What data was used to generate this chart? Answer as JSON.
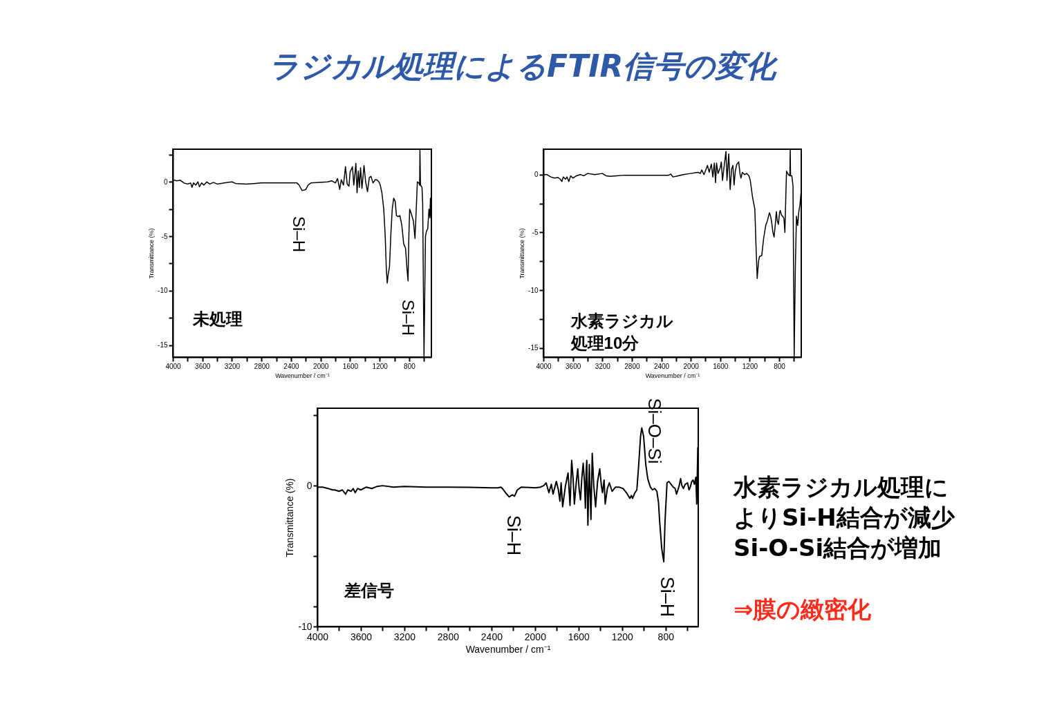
{
  "chart_data": [
    {
      "type": "other",
      "title": "ラジカル処理によるFTIR信号の変化"
    },
    {
      "type": "line",
      "color": "#000000",
      "line_style": "solid",
      "xlabel": "Wavenumber / cm⁻¹",
      "ylabel": "Transmittance (%)",
      "xlim": [
        4000,
        500
      ],
      "ylim": [
        -16.1,
        3.0
      ],
      "xticks": [
        4000,
        {
          "value": 3800,
          "label": null
        },
        3600,
        {
          "value": 3400,
          "label": null
        },
        3200,
        {
          "value": 3000,
          "label": null
        },
        2800,
        {
          "value": 2600,
          "label": null
        },
        2400,
        {
          "value": 2200,
          "label": null
        },
        2000,
        {
          "value": 1800,
          "label": null
        },
        1600,
        {
          "value": 1400,
          "label": null
        },
        1200,
        {
          "value": 1000,
          "label": null
        },
        800,
        {
          "value": 600,
          "label": null
        }
      ],
      "yticks": [
        {
          "value": 2.5,
          "label": null
        },
        0,
        {
          "value": -2.5,
          "label": null
        },
        -5,
        {
          "value": -7.5,
          "label": null
        },
        -10,
        {
          "value": -12.5,
          "label": null
        },
        -15
      ],
      "annotations": [
        "未処理",
        "Si–H",
        "Si–H"
      ],
      "x": [
        4000,
        3950,
        3900,
        3850,
        3800,
        3760,
        3740,
        3720,
        3690,
        3660,
        3640,
        3610,
        3580,
        3540,
        3500,
        3450,
        3400,
        3300,
        3200,
        3150,
        3000,
        2900,
        2800,
        2600,
        2400,
        2320,
        2290,
        2250,
        2220,
        2200,
        2170,
        2130,
        2000,
        1900,
        1850,
        1800,
        1770,
        1741,
        1720,
        1690,
        1663,
        1640,
        1616,
        1600,
        1569,
        1550,
        1522,
        1506,
        1490,
        1475,
        1459,
        1440,
        1412,
        1390,
        1365,
        1340,
        1318,
        1290,
        1260,
        1240,
        1210,
        1192,
        1170,
        1145,
        1125,
        1110,
        1098,
        1085,
        1067,
        1050,
        1030,
        1010,
        990,
        973,
        950,
        926,
        900,
        875,
        850,
        830,
        816,
        805,
        794,
        769,
        744,
        722,
        705,
        690,
        670,
        659,
        655,
        648,
        627,
        618,
        600,
        580,
        565,
        549,
        533,
        520,
        513,
        502
      ],
      "values": [
        0.2,
        0.1,
        0.15,
        -0.1,
        -0.2,
        -0.1,
        -0.5,
        -0.1,
        -0.3,
        0.0,
        -0.45,
        -0.1,
        -0.3,
        0.0,
        -0.2,
        -0.05,
        -0.2,
        -0.1,
        0.0,
        -0.15,
        -0.2,
        -0.15,
        -0.1,
        -0.1,
        -0.1,
        -0.1,
        -0.3,
        -0.8,
        -0.75,
        -0.7,
        -0.3,
        -0.1,
        -0.05,
        0.0,
        0.1,
        -0.1,
        0.3,
        -0.7,
        0.2,
        -0.3,
        1.4,
        -0.2,
        -0.4,
        0.9,
        1.4,
        -0.3,
        1.7,
        -1.0,
        1.0,
        -0.5,
        1.3,
        -0.6,
        1.5,
        0.0,
        -0.9,
        0.4,
        0.5,
        -0.1,
        0.2,
        0.2,
        0.0,
        -0.3,
        -1.0,
        -2.5,
        -5.0,
        -8.0,
        -9.3,
        -8.5,
        -7.8,
        -5.0,
        -2.5,
        -1.5,
        -1.8,
        -3.1,
        -3.2,
        -3.1,
        -4.0,
        -5.7,
        -6.1,
        -8.0,
        -9.1,
        -5.0,
        -2.5,
        -3.0,
        -3.6,
        -5.2,
        -2.5,
        0.0,
        -0.1,
        -0.3,
        3.0,
        -0.3,
        -0.5,
        -2.0,
        -16.1,
        -5.0,
        -4.5,
        -4.3,
        -2.5,
        -3.3,
        -1.5,
        -3.5
      ]
    },
    {
      "type": "line",
      "color": "#000000",
      "line_style": "solid",
      "xlabel": "Wavenumber / cm⁻¹",
      "ylabel": "Transmittance (%)",
      "xlim": [
        4000,
        500
      ],
      "ylim": [
        -15.8,
        2.2
      ],
      "xticks": [
        4000,
        {
          "value": 3800,
          "label": null
        },
        3600,
        {
          "value": 3400,
          "label": null
        },
        3200,
        {
          "value": 3000,
          "label": null
        },
        2800,
        {
          "value": 2600,
          "label": null
        },
        2400,
        {
          "value": 2200,
          "label": null
        },
        2000,
        {
          "value": 1800,
          "label": null
        },
        1600,
        {
          "value": 1400,
          "label": null
        },
        1200,
        {
          "value": 1000,
          "label": null
        },
        800,
        {
          "value": 600,
          "label": null
        }
      ],
      "yticks": [
        0,
        {
          "value": -2.5,
          "label": null
        },
        -5,
        {
          "value": -7.5,
          "label": null
        },
        -10,
        {
          "value": -12.5,
          "label": null
        },
        -15
      ],
      "annotations": [
        "水素ラジカル処理10分"
      ],
      "x": [
        4000,
        3950,
        3900,
        3850,
        3800,
        3770,
        3749,
        3730,
        3700,
        3680,
        3655,
        3630,
        3600,
        3550,
        3500,
        3450,
        3400,
        3300,
        3200,
        3150,
        3100,
        3000,
        2900,
        2800,
        2600,
        2400,
        2300,
        2270,
        2243,
        2200,
        2100,
        2000,
        1950,
        1900,
        1870,
        1850,
        1820,
        1790,
        1773,
        1750,
        1720,
        1700,
        1680,
        1663,
        1650,
        1630,
        1600,
        1585,
        1569,
        1545,
        1522,
        1508,
        1484,
        1465,
        1445,
        1428,
        1412,
        1395,
        1375,
        1349,
        1330,
        1318,
        1300,
        1270,
        1240,
        1210,
        1192,
        1160,
        1130,
        1115,
        1098,
        1080,
        1067,
        1036,
        1010,
        982,
        960,
        932,
        920,
        904,
        885,
        869,
        855,
        838,
        825,
        810,
        795,
        785,
        770,
        753,
        735,
        722,
        710,
        700,
        675,
        655,
        650,
        645,
        628,
        612,
        596,
        580,
        565,
        549,
        533,
        518,
        502,
        500
      ],
      "values": [
        0.0,
        0.0,
        -0.2,
        -0.3,
        -0.25,
        -0.4,
        -0.6,
        -0.2,
        -0.4,
        -0.2,
        -0.6,
        -0.1,
        -0.3,
        -0.1,
        0.0,
        -0.1,
        0.1,
        0.0,
        0.1,
        -0.1,
        -0.15,
        -0.1,
        -0.05,
        -0.05,
        -0.05,
        -0.05,
        -0.05,
        0.05,
        -0.2,
        -0.15,
        0.0,
        0.1,
        0.15,
        0.2,
        0.1,
        0.4,
        0.0,
        0.5,
        0.8,
        0.2,
        0.9,
        -0.2,
        1.0,
        -0.7,
        1.0,
        0.1,
        0.6,
        1.1,
        -0.5,
        0.8,
        2.0,
        -0.5,
        1.8,
        -1.3,
        0.5,
        0.8,
        -0.9,
        0.3,
        0.9,
        1.1,
        0.0,
        -0.3,
        0.2,
        0.0,
        0.1,
        -0.1,
        -0.5,
        -2.0,
        -3.0,
        -6.0,
        -9.0,
        -7.5,
        -7.1,
        -7.0,
        -5.5,
        -4.4,
        -4.0,
        -3.3,
        -3.5,
        -4.0,
        -5.0,
        -5.4,
        -4.5,
        -3.2,
        -4.0,
        -4.3,
        -3.3,
        -3.1,
        -3.5,
        -3.6,
        -3.8,
        -5.0,
        -2.0,
        0.3,
        0.0,
        -0.1,
        2.2,
        -0.1,
        -0.1,
        -1.0,
        -15.8,
        -8.0,
        -3.6,
        -4.4,
        -3.2,
        -2.6,
        -1.5,
        -3.3
      ]
    },
    {
      "type": "line",
      "color": "#000000",
      "line_style": "solid",
      "xlabel": "Wavenumber / cm⁻¹",
      "ylabel": "Transmittance (%)",
      "xlim": [
        4000,
        500
      ],
      "ylim": [
        -10,
        5.5
      ],
      "xticks": [
        4000,
        {
          "value": 3800,
          "label": null
        },
        3600,
        {
          "value": 3400,
          "label": null
        },
        3200,
        {
          "value": 3000,
          "label": null
        },
        2800,
        {
          "value": 2600,
          "label": null
        },
        2400,
        {
          "value": 2200,
          "label": null
        },
        2000,
        {
          "value": 1800,
          "label": null
        },
        1600,
        {
          "value": 1400,
          "label": null
        },
        1200,
        {
          "value": 1000,
          "label": null
        },
        800,
        {
          "value": 600,
          "label": null
        }
      ],
      "yticks": [
        {
          "value": 5,
          "label": null
        },
        0,
        {
          "value": -5,
          "label": null
        },
        {
          "value": -8.6,
          "label": null
        },
        -10
      ],
      "annotations": [
        "差信号",
        "Si–O–Si",
        "Si–H",
        "Si–H"
      ],
      "x": [
        4000,
        3950,
        3900,
        3860,
        3841,
        3800,
        3770,
        3740,
        3720,
        3690,
        3670,
        3652,
        3630,
        3600,
        3550,
        3500,
        3450,
        3400,
        3300,
        3200,
        3000,
        2800,
        2600,
        2400,
        2340,
        2314,
        2300,
        2270,
        2238,
        2208,
        2188,
        2162,
        2125,
        2000,
        1950,
        1920,
        1898,
        1872,
        1850,
        1834,
        1804,
        1785,
        1771,
        1760,
        1746,
        1720,
        1696,
        1678,
        1663,
        1650,
        1638,
        1620,
        1607,
        1595,
        1582,
        1570,
        1557,
        1545,
        1537,
        1530,
        1524,
        1514,
        1501,
        1486,
        1474,
        1460,
        1443,
        1425,
        1405,
        1390,
        1380,
        1365,
        1355,
        1335,
        1317,
        1292,
        1260,
        1229,
        1191,
        1160,
        1128,
        1115,
        1103,
        1082,
        1064,
        1047,
        1030,
        1019,
        1002,
        982,
        964,
        940,
        920,
        901,
        880,
        865,
        855,
        835,
        817,
        805,
        787,
        770,
        750,
        730,
        712,
        700,
        687,
        675,
        662,
        650,
        636,
        620,
        598,
        585,
        573,
        560,
        547,
        535,
        522,
        514,
        504,
        500
      ],
      "values": [
        -0.1,
        -0.1,
        -0.2,
        -0.3,
        -0.3,
        -0.4,
        -0.3,
        -0.6,
        -0.3,
        -0.4,
        -0.2,
        -0.5,
        -0.2,
        -0.3,
        -0.1,
        -0.2,
        -0.05,
        0.0,
        -0.1,
        -0.05,
        -0.1,
        -0.1,
        -0.12,
        -0.15,
        -0.15,
        -0.1,
        -0.2,
        -0.5,
        -0.8,
        -0.65,
        -0.75,
        -0.3,
        -0.1,
        -0.15,
        -0.1,
        0.0,
        0.2,
        -0.5,
        0.1,
        -0.6,
        0.3,
        -0.3,
        -1.1,
        0.2,
        -1.5,
        0.0,
        0.9,
        -1.4,
        1.8,
        0.5,
        -1.3,
        0.3,
        1.2,
        -0.2,
        -1.0,
        0.5,
        1.6,
        0.2,
        -1.6,
        1.0,
        1.8,
        -2.8,
        1.5,
        -2.4,
        2.3,
        0.0,
        -1.5,
        0.3,
        1.2,
        0.0,
        -0.5,
        0.4,
        -1.3,
        -0.2,
        0.2,
        -0.4,
        -0.1,
        -0.1,
        -0.2,
        -0.5,
        -0.9,
        -0.7,
        -0.9,
        -0.5,
        -0.3,
        1.5,
        3.5,
        4.1,
        3.5,
        1.5,
        0.5,
        -0.1,
        -0.3,
        -0.2,
        -0.4,
        -1.2,
        -2.5,
        -4.5,
        -5.4,
        -2.5,
        0.2,
        0.3,
        0.1,
        -0.1,
        -0.2,
        -0.6,
        -0.3,
        0.0,
        0.5,
        0.0,
        -0.2,
        0.1,
        0.2,
        -0.3,
        -0.1,
        0.3,
        0.4,
        0.1,
        0.6,
        -1.3,
        2.7,
        -0.2
      ]
    },
    {
      "type": "other",
      "annotations": [
        "水素ラジカル処理によりSi-H結合が減少",
        "Si-O-Si結合が増加",
        "⇒膜の緻密化"
      ]
    }
  ]
}
